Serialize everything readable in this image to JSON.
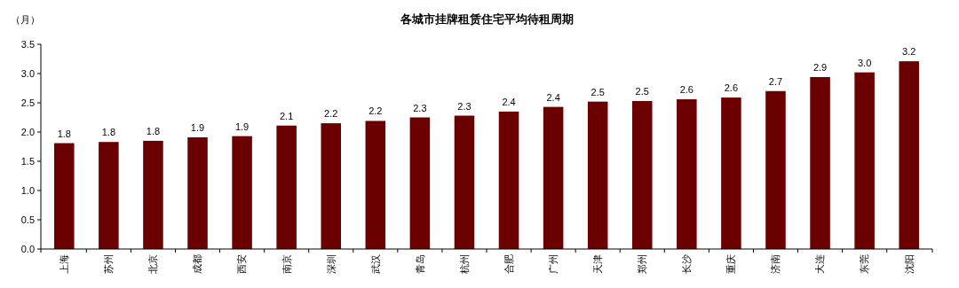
{
  "chart_data": {
    "type": "bar",
    "title": "各城市挂牌租赁住宅平均待租周期",
    "ylabel": "（月）",
    "categories": [
      "上海",
      "苏州",
      "北京",
      "成都",
      "西安",
      "南京",
      "深圳",
      "武汉",
      "青岛",
      "杭州",
      "合肥",
      "广州",
      "天津",
      "郑州",
      "长沙",
      "重庆",
      "济南",
      "大连",
      "东莞",
      "沈阳"
    ],
    "values": [
      1.81,
      1.83,
      1.85,
      1.91,
      1.93,
      2.11,
      2.15,
      2.19,
      2.25,
      2.28,
      2.35,
      2.43,
      2.52,
      2.53,
      2.56,
      2.59,
      2.7,
      2.94,
      3.02,
      3.21
    ],
    "value_labels": [
      "1.8",
      "1.8",
      "1.8",
      "1.9",
      "1.9",
      "2.1",
      "2.2",
      "2.2",
      "2.3",
      "2.3",
      "2.4",
      "2.4",
      "2.5",
      "2.5",
      "2.6",
      "2.6",
      "2.7",
      "2.9",
      "3.0",
      "3.2"
    ],
    "color": "#6b0000",
    "ylim": [
      0,
      3.5
    ],
    "yticks": [
      {
        "value": 0,
        "label": "0.0"
      },
      {
        "value": 0.5,
        "label": "0.5"
      },
      {
        "value": 1,
        "label": "1.0"
      },
      {
        "value": 1.5,
        "label": "1.5"
      },
      {
        "value": 2,
        "label": "2.0"
      },
      {
        "value": 2.5,
        "label": "2.5"
      },
      {
        "value": 3,
        "label": "3.0"
      },
      {
        "value": 3.5,
        "label": "3.5"
      }
    ],
    "grid": false
  }
}
